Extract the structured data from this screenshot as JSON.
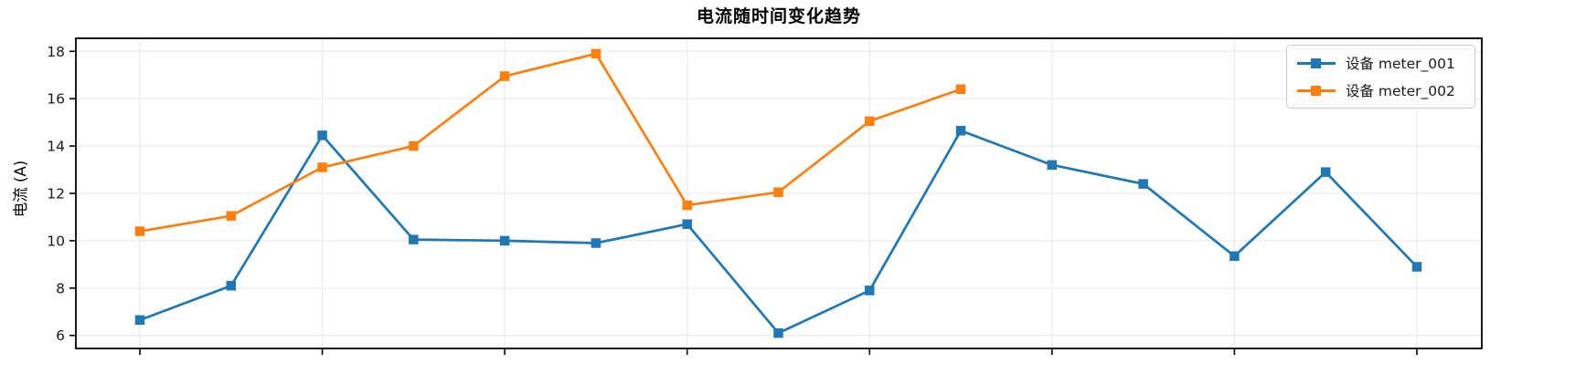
{
  "chart_data": {
    "type": "line",
    "title": "电流随时间变化趋势",
    "xlabel": "",
    "ylabel": "电流 (A)",
    "x": [
      1,
      2,
      3,
      4,
      5,
      6,
      7,
      8,
      9,
      10,
      11,
      12,
      13,
      14,
      15
    ],
    "series": [
      {
        "name": "设备 meter_001",
        "color": "#1f77b4",
        "marker": "square",
        "values": [
          6.65,
          8.1,
          14.45,
          10.05,
          10.0,
          9.9,
          10.7,
          6.1,
          7.9,
          14.65,
          13.2,
          12.4,
          9.35,
          12.9,
          8.9
        ]
      },
      {
        "name": "设备 meter_002",
        "color": "#ff7f0e",
        "marker": "square",
        "values": [
          10.4,
          11.05,
          13.1,
          14.0,
          16.95,
          17.9,
          11.5,
          12.05,
          15.05,
          16.4
        ]
      }
    ],
    "yticks": [
      6,
      8,
      10,
      12,
      14,
      16,
      18
    ],
    "ylim": [
      5.45,
      18.55
    ],
    "x_tick_indices": [
      0,
      2,
      4,
      6,
      8,
      10,
      12,
      14
    ],
    "x_tick_labels_visible": false,
    "grid": true,
    "legend_position": "upper right"
  },
  "style": {
    "grid_color": "#ebebeb",
    "spine_color": "#000000",
    "tick_color": "#000000",
    "text_color": "#1a1a1a",
    "background": "#ffffff"
  }
}
